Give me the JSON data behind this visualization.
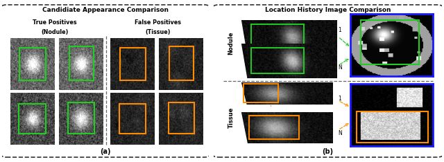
{
  "title_a": "Candidiate Appearance Comparison",
  "title_b": "Location History Image Comparison",
  "label_tp": "True Positives",
  "label_tp2": "(Nodule)",
  "label_fp": "False Positives",
  "label_fp2": "(Tissue)",
  "label_a": "(a)",
  "label_b": "(b)",
  "label_nodule": "Nodule",
  "label_tissue": "Tissue",
  "label_1": "1",
  "label_N": "N",
  "green_color": "#22cc22",
  "orange_color": "#ff8c00",
  "blue_border_color": "#1a1aff",
  "fig_bg": "#ffffff"
}
